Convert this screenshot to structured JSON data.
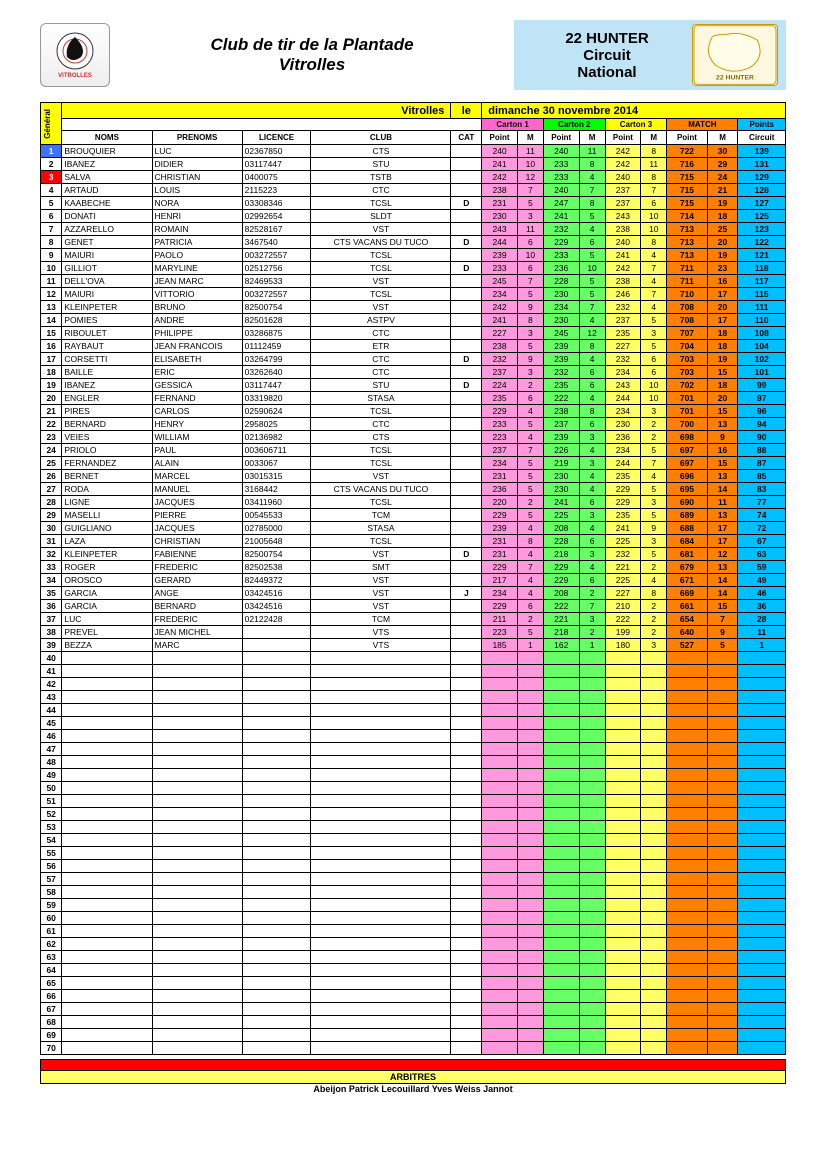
{
  "header": {
    "club_line1": "Club  de  tir  de la Plantade",
    "club_line2": "Vitrolles",
    "event_line1": "22 HUNTER",
    "event_line2": "Circuit",
    "event_line3": "National",
    "left_logo_alt": "VITROLLES SPORT TIR",
    "right_logo_alt": "22 HUNTER"
  },
  "table_title": {
    "loc": "Vitrolles",
    "le": "le",
    "date": "dimanche 30 novembre 2014"
  },
  "general_label": "Général",
  "sections": {
    "c1": "Carton 1",
    "c2": "Carton 2",
    "c3": "Carton 3",
    "match": "MATCH",
    "points": "Points"
  },
  "columns": {
    "noms": "NOMS",
    "prenoms": "PRENOMS",
    "licence": "LICENCE",
    "club": "CLUB",
    "cat": "CAT",
    "point": "Point",
    "m": "M",
    "circuit": "Circuit"
  },
  "colors": {
    "yellow": "#ffff00",
    "pink": "#ff66cc",
    "pink_light": "#ff99dd",
    "green": "#00ff00",
    "green_light": "#66ff66",
    "yellow_light": "#ffff66",
    "orange": "#ff8000",
    "cyan": "#00bfff",
    "red": "#ff0000",
    "blue": "#3b73ff",
    "header_bg": "#bfe4f5"
  },
  "total_rows": 70,
  "rows": [
    {
      "g": 1,
      "gc": "blue",
      "nom": "BROUQUIER",
      "pre": "LUC",
      "lic": "02367850",
      "club": "CTS",
      "cat": "",
      "c1p": 240,
      "c1m": 11,
      "c2p": 240,
      "c2m": 11,
      "c3p": 242,
      "c3m": 8,
      "mp": 722,
      "mm": 30,
      "circ": 139
    },
    {
      "g": 2,
      "nom": "IBANEZ",
      "pre": "DIDIER",
      "lic": "03117447",
      "club": "STU",
      "cat": "",
      "c1p": 241,
      "c1m": 10,
      "c2p": 233,
      "c2m": 8,
      "c3p": 242,
      "c3m": 11,
      "mp": 716,
      "mm": 29,
      "circ": 131
    },
    {
      "g": 3,
      "gc": "red",
      "nom": "SALVA",
      "pre": "CHRISTIAN",
      "lic": "0400075",
      "club": "TSTB",
      "cat": "",
      "c1p": 242,
      "c1m": 12,
      "c2p": 233,
      "c2m": 4,
      "c3p": 240,
      "c3m": 8,
      "mp": 715,
      "mm": 24,
      "circ": 129
    },
    {
      "g": 4,
      "nom": "ARTAUD",
      "pre": "LOUIS",
      "lic": "2115223",
      "club": "CTC",
      "cat": "",
      "c1p": 238,
      "c1m": 7,
      "c2p": 240,
      "c2m": 7,
      "c3p": 237,
      "c3m": 7,
      "mp": 715,
      "mm": 21,
      "circ": 128
    },
    {
      "g": 5,
      "nom": "KAABECHE",
      "pre": "NORA",
      "lic": "03308346",
      "club": "TCSL",
      "cat": "D",
      "c1p": 231,
      "c1m": 5,
      "c2p": 247,
      "c2m": 8,
      "c3p": 237,
      "c3m": 6,
      "mp": 715,
      "mm": 19,
      "circ": 127
    },
    {
      "g": 6,
      "nom": "DONATI",
      "pre": "HENRI",
      "lic": "02992654",
      "club": "SLDT",
      "cat": "",
      "c1p": 230,
      "c1m": 3,
      "c2p": 241,
      "c2m": 5,
      "c3p": 243,
      "c3m": 10,
      "mp": 714,
      "mm": 18,
      "circ": 125
    },
    {
      "g": 7,
      "nom": "AZZARELLO",
      "pre": "ROMAIN",
      "lic": "82528167",
      "club": "VST",
      "cat": "",
      "c1p": 243,
      "c1m": 11,
      "c2p": 232,
      "c2m": 4,
      "c3p": 238,
      "c3m": 10,
      "mp": 713,
      "mm": 25,
      "circ": 123
    },
    {
      "g": 8,
      "nom": "GENET",
      "pre": "PATRICIA",
      "lic": "3467540",
      "club": "CTS VACANS DU TUCO",
      "cat": "D",
      "c1p": 244,
      "c1m": 6,
      "c2p": 229,
      "c2m": 6,
      "c3p": 240,
      "c3m": 8,
      "mp": 713,
      "mm": 20,
      "circ": 122
    },
    {
      "g": 9,
      "nom": "MAIURI",
      "pre": "PAOLO",
      "lic": "003272557",
      "club": "TCSL",
      "cat": "",
      "c1p": 239,
      "c1m": 10,
      "c2p": 233,
      "c2m": 5,
      "c3p": 241,
      "c3m": 4,
      "mp": 713,
      "mm": 19,
      "circ": 121
    },
    {
      "g": 10,
      "nom": "GILLIOT",
      "pre": "MARYLINE",
      "lic": "02512756",
      "club": "TCSL",
      "cat": "D",
      "c1p": 233,
      "c1m": 6,
      "c2p": 236,
      "c2m": 10,
      "c3p": 242,
      "c3m": 7,
      "mp": 711,
      "mm": 23,
      "circ": 118
    },
    {
      "g": 11,
      "nom": "DELL'OVA",
      "pre": "JEAN MARC",
      "lic": "82469533",
      "club": "VST",
      "cat": "",
      "c1p": 245,
      "c1m": 7,
      "c2p": 228,
      "c2m": 5,
      "c3p": 238,
      "c3m": 4,
      "mp": 711,
      "mm": 16,
      "circ": 117
    },
    {
      "g": 12,
      "nom": "MAIURI",
      "pre": "VITTORIO",
      "lic": "003272557",
      "club": "TCSL",
      "cat": "",
      "c1p": 234,
      "c1m": 5,
      "c2p": 230,
      "c2m": 5,
      "c3p": 246,
      "c3m": 7,
      "mp": 710,
      "mm": 17,
      "circ": 115
    },
    {
      "g": 13,
      "nom": "KLEINPETER",
      "pre": "BRUNO",
      "lic": "82500754",
      "club": "VST",
      "cat": "",
      "c1p": 242,
      "c1m": 9,
      "c2p": 234,
      "c2m": 7,
      "c3p": 232,
      "c3m": 4,
      "mp": 708,
      "mm": 20,
      "circ": 111
    },
    {
      "g": 14,
      "nom": "POMIES",
      "pre": "ANDRE",
      "lic": "82501628",
      "club": "ASTPV",
      "cat": "",
      "c1p": 241,
      "c1m": 8,
      "c2p": 230,
      "c2m": 4,
      "c3p": 237,
      "c3m": 5,
      "mp": 708,
      "mm": 17,
      "circ": 110
    },
    {
      "g": 15,
      "nom": "RIBOULET",
      "pre": "PHILIPPE",
      "lic": "03286875",
      "club": "CTC",
      "cat": "",
      "c1p": 227,
      "c1m": 3,
      "c2p": 245,
      "c2m": 12,
      "c3p": 235,
      "c3m": 3,
      "mp": 707,
      "mm": 18,
      "circ": 108
    },
    {
      "g": 16,
      "nom": "RAYBAUT",
      "pre": "JEAN FRANCOIS",
      "lic": "01112459",
      "club": "ETR",
      "cat": "",
      "c1p": 238,
      "c1m": 5,
      "c2p": 239,
      "c2m": 8,
      "c3p": 227,
      "c3m": 5,
      "mp": 704,
      "mm": 18,
      "circ": 104
    },
    {
      "g": 17,
      "nom": "CORSETTI",
      "pre": "ELISABETH",
      "lic": "03264799",
      "club": "CTC",
      "cat": "D",
      "c1p": 232,
      "c1m": 9,
      "c2p": 239,
      "c2m": 4,
      "c3p": 232,
      "c3m": 6,
      "mp": 703,
      "mm": 19,
      "circ": 102
    },
    {
      "g": 18,
      "nom": "BAILLE",
      "pre": "ERIC",
      "lic": "03262640",
      "club": "CTC",
      "cat": "",
      "c1p": 237,
      "c1m": 3,
      "c2p": 232,
      "c2m": 6,
      "c3p": 234,
      "c3m": 6,
      "mp": 703,
      "mm": 15,
      "circ": 101
    },
    {
      "g": 19,
      "nom": "IBANEZ",
      "pre": "GESSICA",
      "lic": "03117447",
      "club": "STU",
      "cat": "D",
      "c1p": 224,
      "c1m": 2,
      "c2p": 235,
      "c2m": 6,
      "c3p": 243,
      "c3m": 10,
      "mp": 702,
      "mm": 18,
      "circ": 99
    },
    {
      "g": 20,
      "nom": "ENGLER",
      "pre": "FERNAND",
      "lic": "03319820",
      "club": "STASA",
      "cat": "",
      "c1p": 235,
      "c1m": 6,
      "c2p": 222,
      "c2m": 4,
      "c3p": 244,
      "c3m": 10,
      "mp": 701,
      "mm": 20,
      "circ": 97
    },
    {
      "g": 21,
      "nom": "PIRES",
      "pre": "CARLOS",
      "lic": "02590624",
      "club": "TCSL",
      "cat": "",
      "c1p": 229,
      "c1m": 4,
      "c2p": 238,
      "c2m": 8,
      "c3p": 234,
      "c3m": 3,
      "mp": 701,
      "mm": 15,
      "circ": 96
    },
    {
      "g": 22,
      "nom": "BERNARD",
      "pre": "HENRY",
      "lic": "2958025",
      "club": "CTC",
      "cat": "",
      "c1p": 233,
      "c1m": 5,
      "c2p": 237,
      "c2m": 6,
      "c3p": 230,
      "c3m": 2,
      "mp": 700,
      "mm": 13,
      "circ": 94
    },
    {
      "g": 23,
      "nom": "VEIES",
      "pre": "WILLIAM",
      "lic": "02136982",
      "club": "CTS",
      "cat": "",
      "c1p": 223,
      "c1m": 4,
      "c2p": 239,
      "c2m": 3,
      "c3p": 236,
      "c3m": 2,
      "mp": 698,
      "mm": 9,
      "circ": 90
    },
    {
      "g": 24,
      "nom": "PRIOLO",
      "pre": "PAUL",
      "lic": "003606711",
      "club": "TCSL",
      "cat": "",
      "c1p": 237,
      "c1m": 7,
      "c2p": 226,
      "c2m": 4,
      "c3p": 234,
      "c3m": 5,
      "mp": 697,
      "mm": 16,
      "circ": 88
    },
    {
      "g": 25,
      "nom": "FERNANDEZ",
      "pre": "ALAIN",
      "lic": "0033067",
      "club": "TCSL",
      "cat": "",
      "c1p": 234,
      "c1m": 5,
      "c2p": 219,
      "c2m": 3,
      "c3p": 244,
      "c3m": 7,
      "mp": 697,
      "mm": 15,
      "circ": 87
    },
    {
      "g": 26,
      "nom": "BERNET",
      "pre": "MARCEL",
      "lic": "03015315",
      "club": "VST",
      "cat": "",
      "c1p": 231,
      "c1m": 5,
      "c2p": 230,
      "c2m": 4,
      "c3p": 235,
      "c3m": 4,
      "mp": 696,
      "mm": 13,
      "circ": 85
    },
    {
      "g": 27,
      "nom": "RODA",
      "pre": "MANUEL",
      "lic": "3168442",
      "club": "CTS VACANS DU TUCO",
      "cat": "",
      "c1p": 236,
      "c1m": 5,
      "c2p": 230,
      "c2m": 4,
      "c3p": 229,
      "c3m": 5,
      "mp": 695,
      "mm": 14,
      "circ": 83
    },
    {
      "g": 28,
      "nom": "LIGNE",
      "pre": "JACQUES",
      "lic": "03411960",
      "club": "TCSL",
      "cat": "",
      "c1p": 220,
      "c1m": 2,
      "c2p": 241,
      "c2m": 6,
      "c3p": 229,
      "c3m": 3,
      "mp": 690,
      "mm": 11,
      "circ": 77
    },
    {
      "g": 29,
      "nom": "MASELLI",
      "pre": "PIERRE",
      "lic": "00545533",
      "club": "TCM",
      "cat": "",
      "c1p": 229,
      "c1m": 5,
      "c2p": 225,
      "c2m": 3,
      "c3p": 235,
      "c3m": 5,
      "mp": 689,
      "mm": 13,
      "circ": 74
    },
    {
      "g": 30,
      "nom": "GUIGLIANO",
      "pre": "JACQUES",
      "lic": "02785000",
      "club": "STASA",
      "cat": "",
      "c1p": 239,
      "c1m": 4,
      "c2p": 208,
      "c2m": 4,
      "c3p": 241,
      "c3m": 9,
      "mp": 688,
      "mm": 17,
      "circ": 72
    },
    {
      "g": 31,
      "nom": "LAZA",
      "pre": "CHRISTIAN",
      "lic": "21005648",
      "club": "TCSL",
      "cat": "",
      "c1p": 231,
      "c1m": 8,
      "c2p": 228,
      "c2m": 6,
      "c3p": 225,
      "c3m": 3,
      "mp": 684,
      "mm": 17,
      "circ": 67
    },
    {
      "g": 32,
      "nom": "KLEINPETER",
      "pre": "FABIENNE",
      "lic": "82500754",
      "club": "VST",
      "cat": "D",
      "c1p": 231,
      "c1m": 4,
      "c2p": 218,
      "c2m": 3,
      "c3p": 232,
      "c3m": 5,
      "mp": 681,
      "mm": 12,
      "circ": 63
    },
    {
      "g": 33,
      "nom": "ROGER",
      "pre": "FREDERIC",
      "lic": "82502538",
      "club": "SMT",
      "cat": "",
      "c1p": 229,
      "c1m": 7,
      "c2p": 229,
      "c2m": 4,
      "c3p": 221,
      "c3m": 2,
      "mp": 679,
      "mm": 13,
      "circ": 59
    },
    {
      "g": 34,
      "nom": "OROSCO",
      "pre": "GERARD",
      "lic": "82449372",
      "club": "VST",
      "cat": "",
      "c1p": 217,
      "c1m": 4,
      "c2p": 229,
      "c2m": 6,
      "c3p": 225,
      "c3m": 4,
      "mp": 671,
      "mm": 14,
      "circ": 49
    },
    {
      "g": 35,
      "nom": "GARCIA",
      "pre": "ANGE",
      "lic": "03424516",
      "club": "VST",
      "cat": "J",
      "c1p": 234,
      "c1m": 4,
      "c2p": 208,
      "c2m": 2,
      "c3p": 227,
      "c3m": 8,
      "mp": 669,
      "mm": 14,
      "circ": 46
    },
    {
      "g": 36,
      "nom": "GARCIA",
      "pre": "BERNARD",
      "lic": "03424516",
      "club": "VST",
      "cat": "",
      "c1p": 229,
      "c1m": 6,
      "c2p": 222,
      "c2m": 7,
      "c3p": 210,
      "c3m": 2,
      "mp": 661,
      "mm": 15,
      "circ": 36
    },
    {
      "g": 37,
      "nom": "LUC",
      "pre": "FREDERIC",
      "lic": "02122428",
      "club": "TCM",
      "cat": "",
      "c1p": 211,
      "c1m": 2,
      "c2p": 221,
      "c2m": 3,
      "c3p": 222,
      "c3m": 2,
      "mp": 654,
      "mm": 7,
      "circ": 28
    },
    {
      "g": 38,
      "nom": "PREVEL",
      "pre": "JEAN MICHEL",
      "lic": "",
      "club": "VTS",
      "cat": "",
      "c1p": 223,
      "c1m": 5,
      "c2p": 218,
      "c2m": 2,
      "c3p": 199,
      "c3m": 2,
      "mp": 640,
      "mm": 9,
      "circ": 11
    },
    {
      "g": 39,
      "nom": "BEZZA",
      "pre": "MARC",
      "lic": "",
      "club": "VTS",
      "cat": "",
      "c1p": 185,
      "c1m": 1,
      "c2p": 162,
      "c2m": 1,
      "c3p": 180,
      "c3m": 3,
      "mp": 527,
      "mm": 5,
      "circ": 1
    }
  ],
  "footer": {
    "label": "ARBITRES",
    "names": "Abeijon Patrick   Lecouillard Yves   Weiss Jannot"
  }
}
